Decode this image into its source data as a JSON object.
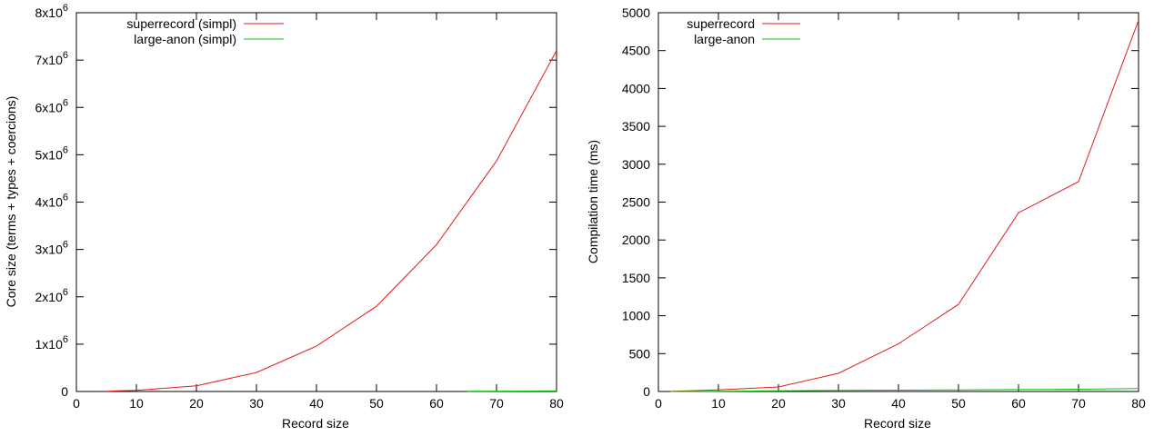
{
  "chart_data": [
    {
      "type": "line",
      "title": "",
      "xlabel": "Record size",
      "ylabel": "Core size (terms + types + coercions)",
      "xlim": [
        0,
        80
      ],
      "ylim": [
        0,
        8000000
      ],
      "xticks": [
        0,
        10,
        20,
        30,
        40,
        50,
        60,
        70,
        80
      ],
      "xtick_labels": [
        "0",
        "10",
        "20",
        "30",
        "40",
        "50",
        "60",
        "70",
        "80"
      ],
      "yticks": [
        0,
        1000000,
        2000000,
        3000000,
        4000000,
        5000000,
        6000000,
        7000000,
        8000000
      ],
      "ytick_labels": [
        {
          "base": "0",
          "exp": ""
        },
        {
          "base": "1x10",
          "exp": "6"
        },
        {
          "base": "2x10",
          "exp": "6"
        },
        {
          "base": "3x10",
          "exp": "6"
        },
        {
          "base": "4x10",
          "exp": "6"
        },
        {
          "base": "5x10",
          "exp": "6"
        },
        {
          "base": "6x10",
          "exp": "6"
        },
        {
          "base": "7x10",
          "exp": "6"
        },
        {
          "base": "8x10",
          "exp": "6"
        }
      ],
      "legend_position": "top-left",
      "grid": false,
      "series": [
        {
          "name": "superrecord (simpl)",
          "color": "#e41a1c",
          "x": [
            5,
            10,
            20,
            30,
            40,
            50,
            60,
            70,
            80
          ],
          "y": [
            5000,
            25000,
            120000,
            400000,
            960000,
            1800000,
            3100000,
            4870000,
            7200000
          ]
        },
        {
          "name": "large-anon (simpl)",
          "color": "#11c011",
          "x": [
            65,
            70,
            80
          ],
          "y": [
            5000,
            8000,
            12000
          ]
        }
      ]
    },
    {
      "type": "line",
      "title": "",
      "xlabel": "Record size",
      "ylabel": "Compilation time (ms)",
      "xlim": [
        0,
        80
      ],
      "ylim": [
        0,
        5000
      ],
      "xticks": [
        0,
        10,
        20,
        30,
        40,
        50,
        60,
        70,
        80
      ],
      "xtick_labels": [
        "0",
        "10",
        "20",
        "30",
        "40",
        "50",
        "60",
        "70",
        "80"
      ],
      "yticks": [
        0,
        500,
        1000,
        1500,
        2000,
        2500,
        3000,
        3500,
        4000,
        4500,
        5000
      ],
      "ytick_labels": [
        {
          "base": "0",
          "exp": ""
        },
        {
          "base": "500",
          "exp": ""
        },
        {
          "base": "1000",
          "exp": ""
        },
        {
          "base": "1500",
          "exp": ""
        },
        {
          "base": "2000",
          "exp": ""
        },
        {
          "base": "2500",
          "exp": ""
        },
        {
          "base": "3000",
          "exp": ""
        },
        {
          "base": "3500",
          "exp": ""
        },
        {
          "base": "4000",
          "exp": ""
        },
        {
          "base": "4500",
          "exp": ""
        },
        {
          "base": "5000",
          "exp": ""
        }
      ],
      "legend_position": "top-left",
      "grid": false,
      "series": [
        {
          "name": "superrecord",
          "color": "#e41a1c",
          "x": [
            2,
            5,
            10,
            20,
            30,
            40,
            50,
            60,
            70,
            80
          ],
          "y": [
            2,
            8,
            20,
            60,
            240,
            630,
            1150,
            2360,
            2770,
            4900
          ]
        },
        {
          "name": "large-anon",
          "color": "#11c011",
          "x": [
            2,
            5,
            10,
            20,
            30,
            40,
            50,
            60,
            70,
            80
          ],
          "y": [
            0,
            1,
            3,
            8,
            14,
            18,
            22,
            26,
            30,
            38
          ]
        }
      ]
    }
  ]
}
